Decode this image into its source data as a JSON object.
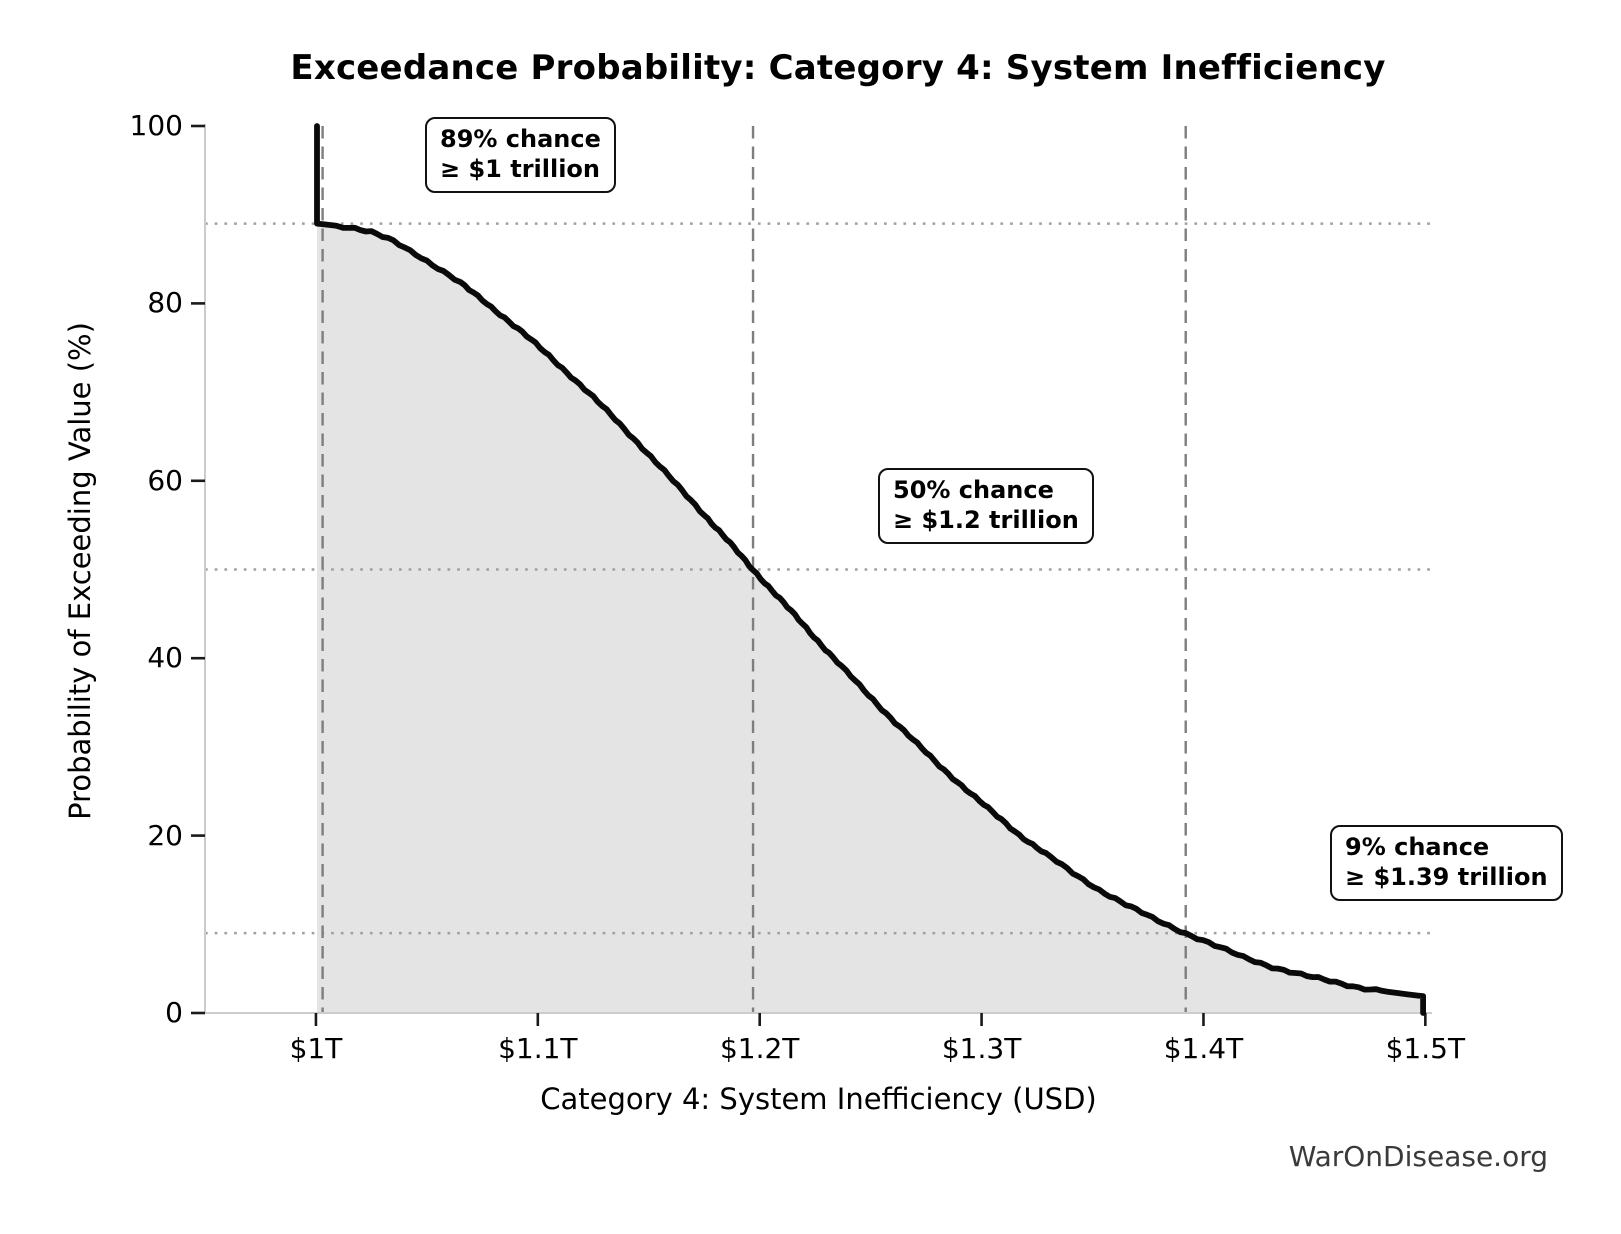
{
  "footer": {
    "watermark": "WarOnDisease.org"
  },
  "chart_data": {
    "type": "area",
    "title": "Exceedance Probability: Category 4: System Inefficiency",
    "xlabel": "Category 4: System Inefficiency (USD)",
    "ylabel": "Probability of Exceeding Value (%)",
    "x_unit": "trillions of USD",
    "xlim": [
      0.95,
      1.503
    ],
    "ylim": [
      0,
      100
    ],
    "legend": "none",
    "grid": "off",
    "x_ticks": [
      {
        "value": 1.0,
        "label": "$1T"
      },
      {
        "value": 1.1,
        "label": "$1.1T"
      },
      {
        "value": 1.2,
        "label": "$1.2T"
      },
      {
        "value": 1.3,
        "label": "$1.3T"
      },
      {
        "value": 1.4,
        "label": "$1.4T"
      },
      {
        "value": 1.5,
        "label": "$1.5T"
      }
    ],
    "y_ticks": [
      {
        "value": 0,
        "label": "0"
      },
      {
        "value": 20,
        "label": "20"
      },
      {
        "value": 40,
        "label": "40"
      },
      {
        "value": 60,
        "label": "60"
      },
      {
        "value": 80,
        "label": "80"
      },
      {
        "value": 100,
        "label": "100"
      }
    ],
    "reference_lines": {
      "horizontal_probability_pct": [
        89,
        50,
        9
      ],
      "vertical_values_trillions": [
        1.003,
        1.197,
        1.392
      ]
    },
    "key_points": [
      {
        "value_trillions": 1.0,
        "probability_pct": 89
      },
      {
        "value_trillions": 1.2,
        "probability_pct": 50
      },
      {
        "value_trillions": 1.39,
        "probability_pct": 9
      }
    ],
    "curve": [
      [
        1.0005,
        100
      ],
      [
        1.0005,
        89
      ],
      [
        1.015,
        88.6
      ],
      [
        1.025,
        88.0
      ],
      [
        1.035,
        87.0
      ],
      [
        1.045,
        85.6
      ],
      [
        1.055,
        84.0
      ],
      [
        1.065,
        82.3
      ],
      [
        1.075,
        80.4
      ],
      [
        1.085,
        78.4
      ],
      [
        1.095,
        76.3
      ],
      [
        1.105,
        74.1
      ],
      [
        1.115,
        71.8
      ],
      [
        1.125,
        69.4
      ],
      [
        1.135,
        66.9
      ],
      [
        1.145,
        64.3
      ],
      [
        1.155,
        61.6
      ],
      [
        1.165,
        58.9
      ],
      [
        1.175,
        56.2
      ],
      [
        1.185,
        53.4
      ],
      [
        1.197,
        50.0
      ],
      [
        1.209,
        46.7
      ],
      [
        1.221,
        43.4
      ],
      [
        1.233,
        40.1
      ],
      [
        1.245,
        36.9
      ],
      [
        1.257,
        33.8
      ],
      [
        1.269,
        30.8
      ],
      [
        1.281,
        27.9
      ],
      [
        1.293,
        25.2
      ],
      [
        1.305,
        22.6
      ],
      [
        1.317,
        20.1
      ],
      [
        1.329,
        17.9
      ],
      [
        1.341,
        15.8
      ],
      [
        1.353,
        13.9
      ],
      [
        1.365,
        12.2
      ],
      [
        1.377,
        10.7
      ],
      [
        1.392,
        9.0
      ],
      [
        1.405,
        7.6
      ],
      [
        1.418,
        6.3
      ],
      [
        1.431,
        5.2
      ],
      [
        1.444,
        4.3
      ],
      [
        1.457,
        3.6
      ],
      [
        1.47,
        2.9
      ],
      [
        1.483,
        2.4
      ],
      [
        1.492,
        2.1
      ],
      [
        1.499,
        1.9
      ],
      [
        1.499,
        0
      ]
    ],
    "annotations": [
      {
        "line1": "89% chance",
        "line2": "≥ $1 trillion"
      },
      {
        "line1": "50% chance",
        "line2": "≥ $1.2 trillion"
      },
      {
        "line1": "9% chance",
        "line2": "≥ $1.39 trillion"
      }
    ],
    "colors": {
      "curve": "#0a0a0a",
      "fill": "#e4e4e4",
      "dotted_gridline": "#a0a0a0",
      "dashed_refline": "#7e7e7e",
      "spine": "#cccccc",
      "tick": "#1a1a1a",
      "text": "#000000",
      "watermark": "#3a3a3a"
    }
  }
}
